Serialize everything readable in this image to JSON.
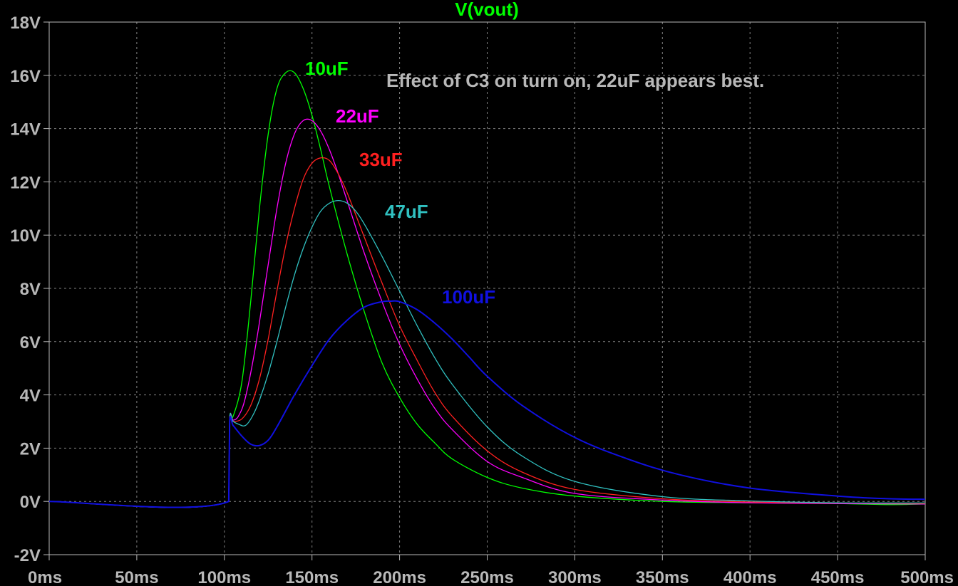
{
  "chart_data": {
    "type": "line",
    "title": "V(vout)",
    "annotation": "Effect of C3 on turn on,  22uF appears best.",
    "xlim": [
      0,
      500
    ],
    "ylim": [
      -2,
      18
    ],
    "x_ticks": [
      0,
      50,
      100,
      150,
      200,
      250,
      300,
      350,
      400,
      450,
      500
    ],
    "x_tick_labels": [
      "0ms",
      "50ms",
      "100ms",
      "150ms",
      "200ms",
      "250ms",
      "300ms",
      "350ms",
      "400ms",
      "450ms",
      "500ms"
    ],
    "y_ticks": [
      18,
      16,
      14,
      12,
      10,
      8,
      6,
      4,
      2,
      0,
      -2
    ],
    "y_tick_labels": [
      "18V",
      "16V",
      "14V",
      "12V",
      "10V",
      "8V",
      "6V",
      "4V",
      "2V",
      "0V",
      "-2V"
    ],
    "grid": true,
    "background": "#000000",
    "grid_color": "#808080",
    "axis_color": "#b8b8b8",
    "series": [
      {
        "name": "10uF",
        "color": "#00ff00",
        "x": [
          0,
          102.5,
          103,
          105,
          110,
          115,
          120,
          125,
          130,
          135,
          140,
          145,
          150,
          155,
          160,
          170,
          180,
          190,
          200,
          210,
          220,
          230,
          250,
          270,
          300,
          350,
          400,
          450,
          480,
          500
        ],
        "y": [
          0,
          0,
          3.1,
          3.2,
          4.5,
          7.5,
          11.0,
          13.8,
          15.5,
          16.1,
          16.1,
          15.5,
          14.5,
          13.2,
          11.8,
          9.3,
          7.1,
          5.2,
          3.9,
          2.9,
          2.2,
          1.6,
          0.9,
          0.5,
          0.2,
          0.0,
          -0.05,
          -0.08,
          -0.12,
          -0.1
        ]
      },
      {
        "name": "22uF",
        "color": "#ff00ff",
        "x": [
          0,
          102.5,
          103,
          105,
          108,
          112,
          118,
          125,
          130,
          135,
          140,
          145,
          150,
          155,
          160,
          165,
          170,
          180,
          190,
          200,
          210,
          220,
          230,
          250,
          270,
          300,
          350,
          400,
          450,
          500
        ],
        "y": [
          0,
          0,
          3.1,
          3.05,
          3.2,
          3.9,
          5.9,
          8.9,
          11.0,
          12.7,
          13.8,
          14.3,
          14.3,
          13.9,
          13.2,
          12.3,
          11.3,
          9.3,
          7.5,
          5.9,
          4.6,
          3.5,
          2.7,
          1.5,
          0.9,
          0.3,
          0.05,
          -0.05,
          -0.08,
          -0.1
        ]
      },
      {
        "name": "33uF",
        "color": "#ff2020",
        "x": [
          0,
          102.5,
          103,
          105,
          110,
          115,
          120,
          125,
          130,
          135,
          140,
          145,
          150,
          155,
          160,
          165,
          170,
          180,
          190,
          200,
          210,
          220,
          230,
          250,
          270,
          300,
          350,
          400,
          450,
          500
        ],
        "y": [
          0,
          0,
          3.1,
          3.0,
          3.1,
          3.6,
          4.6,
          6.1,
          7.9,
          9.6,
          11.0,
          12.1,
          12.7,
          12.9,
          12.8,
          12.3,
          11.6,
          9.9,
          8.2,
          6.6,
          5.3,
          4.1,
          3.2,
          1.9,
          1.1,
          0.45,
          0.1,
          -0.02,
          -0.06,
          -0.08
        ]
      },
      {
        "name": "47uF",
        "color": "#30c0c0",
        "x": [
          0,
          102.5,
          103,
          105,
          108,
          112,
          116,
          120,
          125,
          130,
          135,
          140,
          145,
          150,
          155,
          160,
          165,
          170,
          175,
          180,
          190,
          200,
          210,
          220,
          230,
          250,
          270,
          300,
          350,
          400,
          450,
          500
        ],
        "y": [
          0,
          0,
          3.1,
          3.0,
          2.9,
          2.85,
          3.2,
          3.8,
          4.8,
          6.0,
          7.3,
          8.5,
          9.5,
          10.3,
          10.9,
          11.2,
          11.3,
          11.2,
          10.9,
          10.4,
          9.2,
          7.9,
          6.6,
          5.4,
          4.4,
          2.8,
          1.7,
          0.75,
          0.18,
          0.02,
          -0.05,
          -0.06
        ]
      },
      {
        "name": "100uF",
        "color": "#1010e0",
        "x": [
          0,
          102.5,
          103,
          105,
          110,
          115,
          120,
          125,
          130,
          140,
          150,
          160,
          170,
          180,
          190,
          195,
          200,
          210,
          220,
          230,
          240,
          250,
          270,
          300,
          330,
          360,
          400,
          450,
          480,
          500
        ],
        "y": [
          0,
          0,
          3.0,
          2.85,
          2.45,
          2.15,
          2.1,
          2.3,
          2.8,
          4.0,
          5.1,
          6.1,
          6.8,
          7.3,
          7.5,
          7.52,
          7.5,
          7.2,
          6.7,
          6.1,
          5.4,
          4.7,
          3.6,
          2.4,
          1.6,
          1.0,
          0.5,
          0.2,
          0.1,
          0.08
        ]
      }
    ],
    "series_labels": [
      {
        "text": "10uF",
        "color": "#00ff00"
      },
      {
        "text": "22uF",
        "color": "#ff00ff"
      },
      {
        "text": "33uF",
        "color": "#ff2020"
      },
      {
        "text": "47uF",
        "color": "#30c0c0"
      },
      {
        "text": "100uF",
        "color": "#1010e0"
      }
    ]
  }
}
